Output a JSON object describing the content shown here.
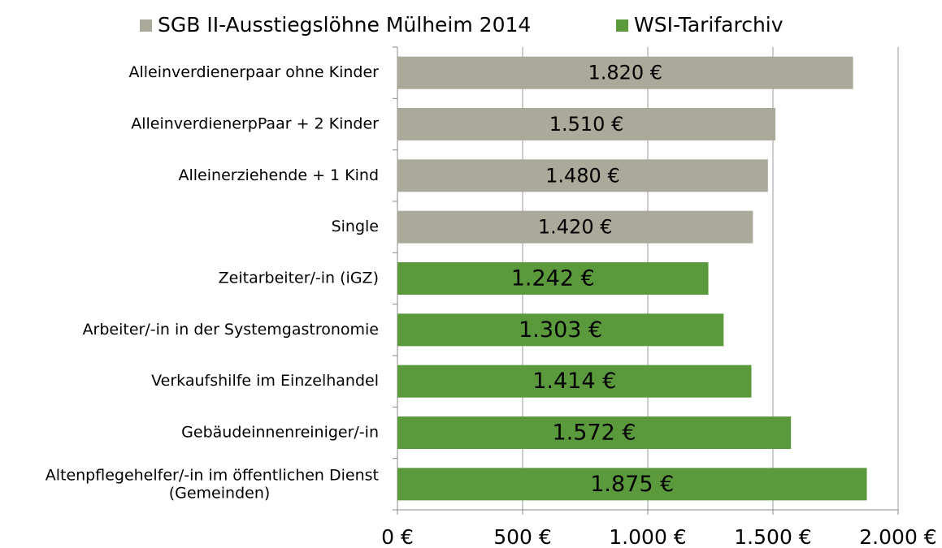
{
  "chart_data": {
    "type": "bar",
    "orientation": "horizontal",
    "categories": [
      "Alleinverdienerpaar ohne Kinder",
      "AlleinverdienerpPaar + 2 Kinder",
      "Alleinerziehende + 1 Kind",
      "Single",
      "Zeitarbeiter/-in (iGZ)",
      "Arbeiter/-in in der Systemgastronomie",
      "Verkaufshilfe im Einzelhandel",
      "Gebäudeinnenreiniger/-in",
      "Altenpflegehelfer/-in im öffentlichen Dienst\n(Gemeinden)"
    ],
    "series": [
      {
        "name": "SGB II-Ausstiegslöhne Mülheim 2014",
        "color": "#aaa99a",
        "values": [
          1820,
          1510,
          1480,
          1420,
          null,
          null,
          null,
          null,
          null
        ],
        "value_labels": [
          "1.820 €",
          "1.510 €",
          "1.480 €",
          "1.420 €",
          null,
          null,
          null,
          null,
          null
        ]
      },
      {
        "name": "WSI-Tarifarchiv",
        "color": "#5b9a3c",
        "values": [
          null,
          null,
          null,
          null,
          1242,
          1303,
          1414,
          1572,
          1875
        ],
        "value_labels": [
          null,
          null,
          null,
          null,
          "1.242 €",
          "1.303 €",
          "1.414 €",
          "1.572 €",
          "1.875 €"
        ]
      }
    ],
    "xlim": [
      0,
      2000
    ],
    "xticks": [
      {
        "value": 0,
        "label": "0 €"
      },
      {
        "value": 500,
        "label": "500 €"
      },
      {
        "value": 1000,
        "label": "1.000 €"
      },
      {
        "value": 1500,
        "label": "1.500 €"
      },
      {
        "value": 2000,
        "label": "2.000 €"
      }
    ],
    "grid": true,
    "legend": "top"
  }
}
